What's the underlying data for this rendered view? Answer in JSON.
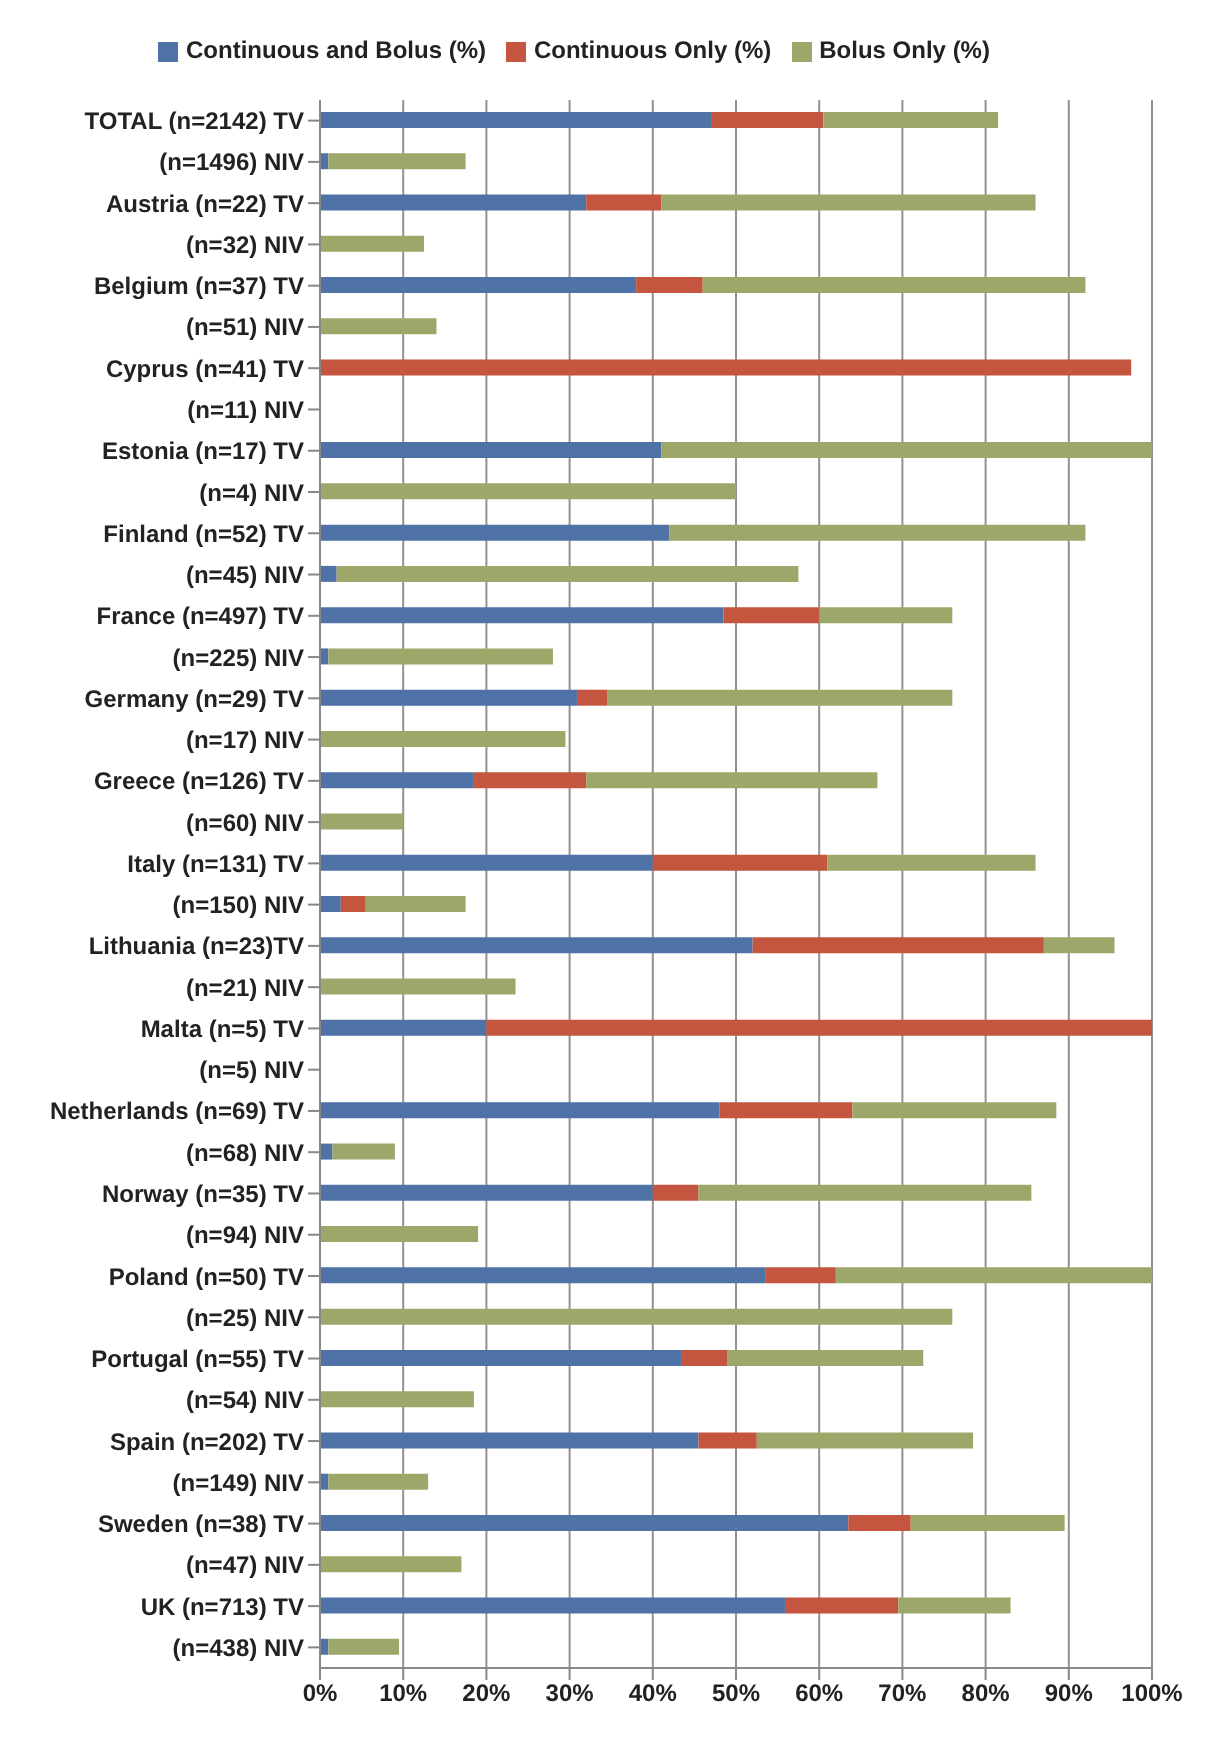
{
  "chart_data": {
    "type": "bar",
    "orientation": "horizontal",
    "stacked": true,
    "legend": "top",
    "grid": "x",
    "categories": [
      "TOTAL (n=2142) TV",
      "(n=1496) NIV",
      "Austria (n=22) TV",
      "(n=32) NIV",
      "Belgium (n=37) TV",
      "(n=51) NIV",
      "Cyprus (n=41) TV",
      "(n=11) NIV",
      "Estonia (n=17) TV",
      "(n=4) NIV",
      "Finland (n=52) TV",
      "(n=45) NIV",
      "France (n=497) TV",
      "(n=225) NIV",
      "Germany (n=29) TV",
      "(n=17) NIV",
      "Greece (n=126) TV",
      "(n=60) NIV",
      "Italy (n=131) TV",
      "(n=150) NIV",
      "Lithuania (n=23)TV",
      "(n=21) NIV",
      "Malta (n=5) TV",
      "(n=5) NIV",
      "Netherlands (n=69) TV",
      "(n=68) NIV",
      "Norway (n=35) TV",
      "(n=94) NIV",
      "Poland (n=50) TV",
      "(n=25) NIV",
      "Portugal (n=55) TV",
      "(n=54) NIV",
      "Spain (n=202) TV",
      "(n=149) NIV",
      "Sweden (n=38) TV",
      "(n=47) NIV",
      "UK (n=713) TV",
      "(n=438) NIV"
    ],
    "series": [
      {
        "name": "Continuous and Bolus (%)",
        "color": "#4f73a6",
        "values": [
          47,
          1,
          32,
          0,
          38,
          0,
          0,
          0,
          41,
          0,
          42,
          2,
          48.5,
          1,
          31,
          0,
          18.5,
          0,
          40,
          2.5,
          52,
          0,
          20,
          0,
          48,
          1.5,
          40,
          0,
          53.5,
          0,
          43.5,
          0,
          45.5,
          1,
          63.5,
          0,
          56,
          1
        ]
      },
      {
        "name": "Continuous Only (%)",
        "color": "#c4553f",
        "values": [
          13.5,
          0,
          9,
          0,
          8,
          0,
          97.5,
          0,
          0,
          0,
          0,
          0,
          11.5,
          0,
          3.5,
          0,
          13.5,
          0,
          21,
          3,
          35,
          0,
          80,
          0,
          16,
          0,
          5.5,
          0,
          8.5,
          0,
          5.5,
          0,
          7,
          0,
          7.5,
          0,
          13.5,
          0
        ]
      },
      {
        "name": "Bolus Only (%)",
        "color": "#9ea76a",
        "values": [
          21,
          16.5,
          45,
          12.5,
          46,
          14,
          0,
          0,
          59,
          50,
          50,
          55.5,
          16,
          27,
          41.5,
          29.5,
          35,
          10,
          25,
          12,
          8.5,
          23.5,
          0,
          0,
          24.5,
          7.5,
          40,
          19,
          38,
          76,
          23.5,
          18.5,
          26,
          12,
          18.5,
          17,
          13.5,
          8.5
        ]
      }
    ],
    "xlim": [
      0,
      100
    ],
    "xticks": [
      {
        "value": 0,
        "label": "0%"
      },
      {
        "value": 10,
        "label": "10%"
      },
      {
        "value": 20,
        "label": "20%"
      },
      {
        "value": 30,
        "label": "30%"
      },
      {
        "value": 40,
        "label": "40%"
      },
      {
        "value": 50,
        "label": "50%"
      },
      {
        "value": 60,
        "label": "60%"
      },
      {
        "value": 70,
        "label": "70%"
      },
      {
        "value": 80,
        "label": "80%"
      },
      {
        "value": 90,
        "label": "90%"
      },
      {
        "value": 100,
        "label": "100%"
      }
    ]
  }
}
